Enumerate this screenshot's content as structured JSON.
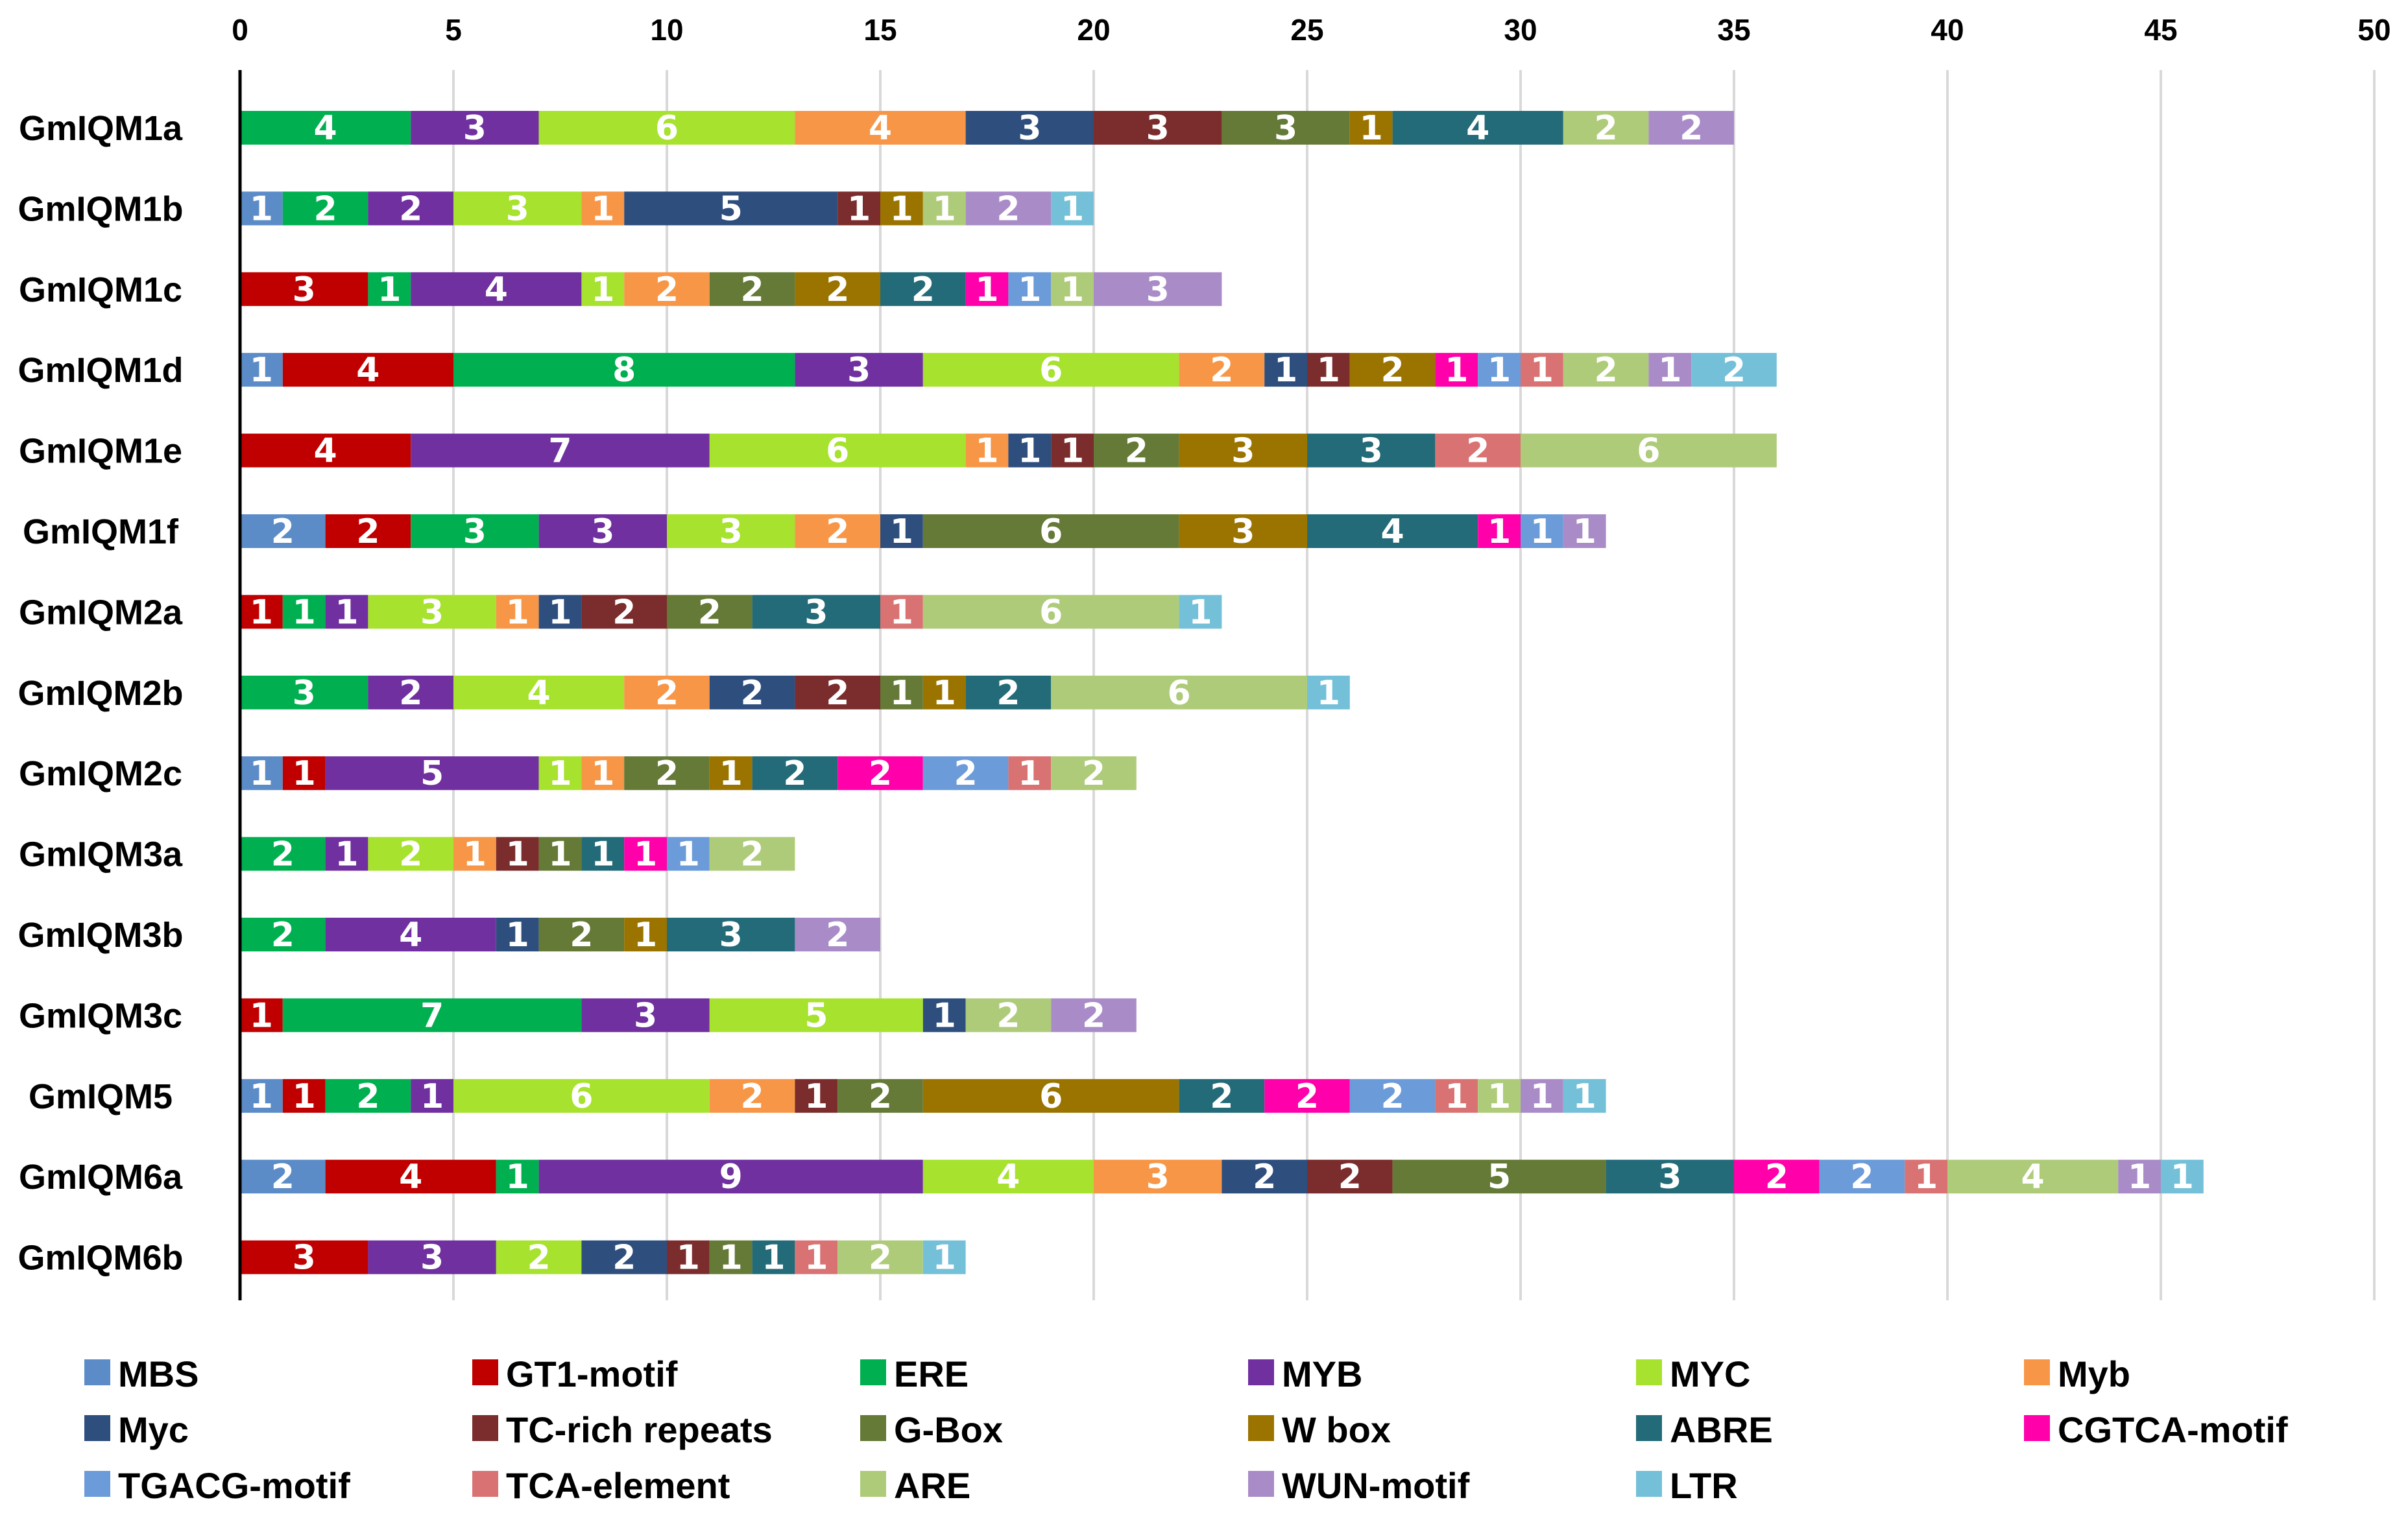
{
  "chart_data": {
    "type": "bar",
    "orientation": "horizontal",
    "stacked": true,
    "title": "",
    "xlabel": "",
    "ylabel": "",
    "xlim": [
      0,
      50
    ],
    "x_ticks": [
      "0",
      "5",
      "10",
      "15",
      "20",
      "25",
      "30",
      "35",
      "40",
      "45",
      "50"
    ],
    "x_axis_position": "top",
    "grid": true,
    "legend_position": "bottom",
    "elements": [
      {
        "name": "MBS",
        "color": "#5B8CC8"
      },
      {
        "name": "GT1-motif",
        "color": "#C00000"
      },
      {
        "name": "ERE",
        "color": "#00B050"
      },
      {
        "name": "MYB",
        "color": "#7030A0"
      },
      {
        "name": "MYC",
        "color": "#A6E22E"
      },
      {
        "name": "Myb",
        "color": "#F79646"
      },
      {
        "name": "Myc",
        "color": "#2E4E7E"
      },
      {
        "name": "TC-rich repeats",
        "color": "#7B2C2C"
      },
      {
        "name": "G-Box",
        "color": "#647A36"
      },
      {
        "name": "W box",
        "color": "#9B7400"
      },
      {
        "name": "ABRE",
        "color": "#236B78"
      },
      {
        "name": "CGTCA-motif",
        "color": "#FF00AA"
      },
      {
        "name": "TGACG-motif",
        "color": "#6B9BD8"
      },
      {
        "name": "TCA-element",
        "color": "#D97373"
      },
      {
        "name": "ARE",
        "color": "#AECB7A"
      },
      {
        "name": "WUN-motif",
        "color": "#A98CC7"
      },
      {
        "name": "LTR",
        "color": "#74C0D8"
      }
    ],
    "genes": [
      {
        "name": "GmIQM1a",
        "segments": [
          {
            "element": "ERE",
            "value": 4
          },
          {
            "element": "MYB",
            "value": 3
          },
          {
            "element": "MYC",
            "value": 6
          },
          {
            "element": "Myb",
            "value": 4
          },
          {
            "element": "Myc",
            "value": 3
          },
          {
            "element": "TC-rich repeats",
            "value": 3
          },
          {
            "element": "G-Box",
            "value": 3
          },
          {
            "element": "W box",
            "value": 1
          },
          {
            "element": "ABRE",
            "value": 4
          },
          {
            "element": "ARE",
            "value": 2
          },
          {
            "element": "WUN-motif",
            "value": 2
          }
        ]
      },
      {
        "name": "GmIQM1b",
        "segments": [
          {
            "element": "MBS",
            "value": 1
          },
          {
            "element": "ERE",
            "value": 2
          },
          {
            "element": "MYB",
            "value": 2
          },
          {
            "element": "MYC",
            "value": 3
          },
          {
            "element": "Myb",
            "value": 1
          },
          {
            "element": "Myc",
            "value": 5
          },
          {
            "element": "TC-rich repeats",
            "value": 1
          },
          {
            "element": "W box",
            "value": 1
          },
          {
            "element": "ARE",
            "value": 1
          },
          {
            "element": "WUN-motif",
            "value": 2
          },
          {
            "element": "LTR",
            "value": 1
          }
        ]
      },
      {
        "name": "GmIQM1c",
        "segments": [
          {
            "element": "GT1-motif",
            "value": 3
          },
          {
            "element": "ERE",
            "value": 1
          },
          {
            "element": "MYB",
            "value": 4
          },
          {
            "element": "MYC",
            "value": 1
          },
          {
            "element": "Myb",
            "value": 2
          },
          {
            "element": "G-Box",
            "value": 2
          },
          {
            "element": "W box",
            "value": 2
          },
          {
            "element": "ABRE",
            "value": 2
          },
          {
            "element": "CGTCA-motif",
            "value": 1
          },
          {
            "element": "TGACG-motif",
            "value": 1
          },
          {
            "element": "ARE",
            "value": 1
          },
          {
            "element": "WUN-motif",
            "value": 3
          }
        ]
      },
      {
        "name": "GmIQM1d",
        "segments": [
          {
            "element": "MBS",
            "value": 1
          },
          {
            "element": "GT1-motif",
            "value": 4
          },
          {
            "element": "ERE",
            "value": 8
          },
          {
            "element": "MYB",
            "value": 3
          },
          {
            "element": "MYC",
            "value": 6
          },
          {
            "element": "Myb",
            "value": 2
          },
          {
            "element": "Myc",
            "value": 1
          },
          {
            "element": "TC-rich repeats",
            "value": 1
          },
          {
            "element": "W box",
            "value": 2
          },
          {
            "element": "CGTCA-motif",
            "value": 1
          },
          {
            "element": "TGACG-motif",
            "value": 1
          },
          {
            "element": "TCA-element",
            "value": 1
          },
          {
            "element": "ARE",
            "value": 2
          },
          {
            "element": "WUN-motif",
            "value": 1
          },
          {
            "element": "LTR",
            "value": 2
          }
        ]
      },
      {
        "name": "GmIQM1e",
        "segments": [
          {
            "element": "GT1-motif",
            "value": 4
          },
          {
            "element": "MYB",
            "value": 7
          },
          {
            "element": "MYC",
            "value": 6
          },
          {
            "element": "Myb",
            "value": 1
          },
          {
            "element": "Myc",
            "value": 1
          },
          {
            "element": "TC-rich repeats",
            "value": 1
          },
          {
            "element": "G-Box",
            "value": 2
          },
          {
            "element": "W box",
            "value": 3
          },
          {
            "element": "ABRE",
            "value": 3
          },
          {
            "element": "TCA-element",
            "value": 2
          },
          {
            "element": "ARE",
            "value": 6
          }
        ]
      },
      {
        "name": "GmIQM1f",
        "segments": [
          {
            "element": "MBS",
            "value": 2
          },
          {
            "element": "GT1-motif",
            "value": 2
          },
          {
            "element": "ERE",
            "value": 3
          },
          {
            "element": "MYB",
            "value": 3
          },
          {
            "element": "MYC",
            "value": 3
          },
          {
            "element": "Myb",
            "value": 2
          },
          {
            "element": "Myc",
            "value": 1
          },
          {
            "element": "G-Box",
            "value": 6
          },
          {
            "element": "W box",
            "value": 3
          },
          {
            "element": "ABRE",
            "value": 4
          },
          {
            "element": "CGTCA-motif",
            "value": 1
          },
          {
            "element": "TGACG-motif",
            "value": 1
          },
          {
            "element": "WUN-motif",
            "value": 1
          }
        ]
      },
      {
        "name": "GmIQM2a",
        "segments": [
          {
            "element": "GT1-motif",
            "value": 1
          },
          {
            "element": "ERE",
            "value": 1
          },
          {
            "element": "MYB",
            "value": 1
          },
          {
            "element": "MYC",
            "value": 3
          },
          {
            "element": "Myb",
            "value": 1
          },
          {
            "element": "Myc",
            "value": 1
          },
          {
            "element": "TC-rich repeats",
            "value": 2
          },
          {
            "element": "G-Box",
            "value": 2
          },
          {
            "element": "ABRE",
            "value": 3
          },
          {
            "element": "TCA-element",
            "value": 1
          },
          {
            "element": "ARE",
            "value": 6
          },
          {
            "element": "LTR",
            "value": 1
          }
        ]
      },
      {
        "name": "GmIQM2b",
        "segments": [
          {
            "element": "ERE",
            "value": 3
          },
          {
            "element": "MYB",
            "value": 2
          },
          {
            "element": "MYC",
            "value": 4
          },
          {
            "element": "Myb",
            "value": 2
          },
          {
            "element": "Myc",
            "value": 2
          },
          {
            "element": "TC-rich repeats",
            "value": 2
          },
          {
            "element": "G-Box",
            "value": 1
          },
          {
            "element": "W box",
            "value": 1
          },
          {
            "element": "ABRE",
            "value": 2
          },
          {
            "element": "ARE",
            "value": 6
          },
          {
            "element": "LTR",
            "value": 1
          }
        ]
      },
      {
        "name": "GmIQM2c",
        "segments": [
          {
            "element": "MBS",
            "value": 1
          },
          {
            "element": "GT1-motif",
            "value": 1
          },
          {
            "element": "MYB",
            "value": 5
          },
          {
            "element": "MYC",
            "value": 1
          },
          {
            "element": "Myb",
            "value": 1
          },
          {
            "element": "G-Box",
            "value": 2
          },
          {
            "element": "W box",
            "value": 1
          },
          {
            "element": "ABRE",
            "value": 2
          },
          {
            "element": "CGTCA-motif",
            "value": 2
          },
          {
            "element": "TGACG-motif",
            "value": 2
          },
          {
            "element": "TCA-element",
            "value": 1
          },
          {
            "element": "ARE",
            "value": 2
          }
        ]
      },
      {
        "name": "GmIQM3a",
        "segments": [
          {
            "element": "ERE",
            "value": 2
          },
          {
            "element": "MYB",
            "value": 1
          },
          {
            "element": "MYC",
            "value": 2
          },
          {
            "element": "Myb",
            "value": 1
          },
          {
            "element": "TC-rich repeats",
            "value": 1
          },
          {
            "element": "G-Box",
            "value": 1
          },
          {
            "element": "ABRE",
            "value": 1
          },
          {
            "element": "CGTCA-motif",
            "value": 1
          },
          {
            "element": "TGACG-motif",
            "value": 1
          },
          {
            "element": "ARE",
            "value": 2
          }
        ]
      },
      {
        "name": "GmIQM3b",
        "segments": [
          {
            "element": "ERE",
            "value": 2
          },
          {
            "element": "MYB",
            "value": 4
          },
          {
            "element": "Myc",
            "value": 1
          },
          {
            "element": "G-Box",
            "value": 2
          },
          {
            "element": "W box",
            "value": 1
          },
          {
            "element": "ABRE",
            "value": 3
          },
          {
            "element": "WUN-motif",
            "value": 2
          }
        ]
      },
      {
        "name": "GmIQM3c",
        "segments": [
          {
            "element": "GT1-motif",
            "value": 1
          },
          {
            "element": "ERE",
            "value": 7
          },
          {
            "element": "MYB",
            "value": 3
          },
          {
            "element": "MYC",
            "value": 5
          },
          {
            "element": "Myc",
            "value": 1
          },
          {
            "element": "ARE",
            "value": 2
          },
          {
            "element": "WUN-motif",
            "value": 2
          }
        ]
      },
      {
        "name": "GmIQM5",
        "segments": [
          {
            "element": "MBS",
            "value": 1
          },
          {
            "element": "GT1-motif",
            "value": 1
          },
          {
            "element": "ERE",
            "value": 2
          },
          {
            "element": "MYB",
            "value": 1
          },
          {
            "element": "MYC",
            "value": 6
          },
          {
            "element": "Myb",
            "value": 2
          },
          {
            "element": "TC-rich repeats",
            "value": 1
          },
          {
            "element": "G-Box",
            "value": 2
          },
          {
            "element": "W box",
            "value": 6
          },
          {
            "element": "ABRE",
            "value": 2
          },
          {
            "element": "CGTCA-motif",
            "value": 2
          },
          {
            "element": "TGACG-motif",
            "value": 2
          },
          {
            "element": "TCA-element",
            "value": 1
          },
          {
            "element": "ARE",
            "value": 1
          },
          {
            "element": "WUN-motif",
            "value": 1
          },
          {
            "element": "LTR",
            "value": 1
          }
        ]
      },
      {
        "name": "GmIQM6a",
        "segments": [
          {
            "element": "MBS",
            "value": 2
          },
          {
            "element": "GT1-motif",
            "value": 4
          },
          {
            "element": "ERE",
            "value": 1
          },
          {
            "element": "MYB",
            "value": 9
          },
          {
            "element": "MYC",
            "value": 4
          },
          {
            "element": "Myb",
            "value": 3
          },
          {
            "element": "Myc",
            "value": 2
          },
          {
            "element": "TC-rich repeats",
            "value": 2
          },
          {
            "element": "G-Box",
            "value": 5
          },
          {
            "element": "ABRE",
            "value": 3
          },
          {
            "element": "CGTCA-motif",
            "value": 2
          },
          {
            "element": "TGACG-motif",
            "value": 2
          },
          {
            "element": "TCA-element",
            "value": 1
          },
          {
            "element": "ARE",
            "value": 4
          },
          {
            "element": "WUN-motif",
            "value": 1
          },
          {
            "element": "LTR",
            "value": 1
          }
        ]
      },
      {
        "name": "GmIQM6b",
        "segments": [
          {
            "element": "GT1-motif",
            "value": 3
          },
          {
            "element": "MYB",
            "value": 3
          },
          {
            "element": "MYC",
            "value": 2
          },
          {
            "element": "Myc",
            "value": 2
          },
          {
            "element": "TC-rich repeats",
            "value": 1
          },
          {
            "element": "G-Box",
            "value": 1
          },
          {
            "element": "ABRE",
            "value": 1
          },
          {
            "element": "TCA-element",
            "value": 1
          },
          {
            "element": "ARE",
            "value": 2
          },
          {
            "element": "LTR",
            "value": 1
          }
        ]
      }
    ]
  }
}
